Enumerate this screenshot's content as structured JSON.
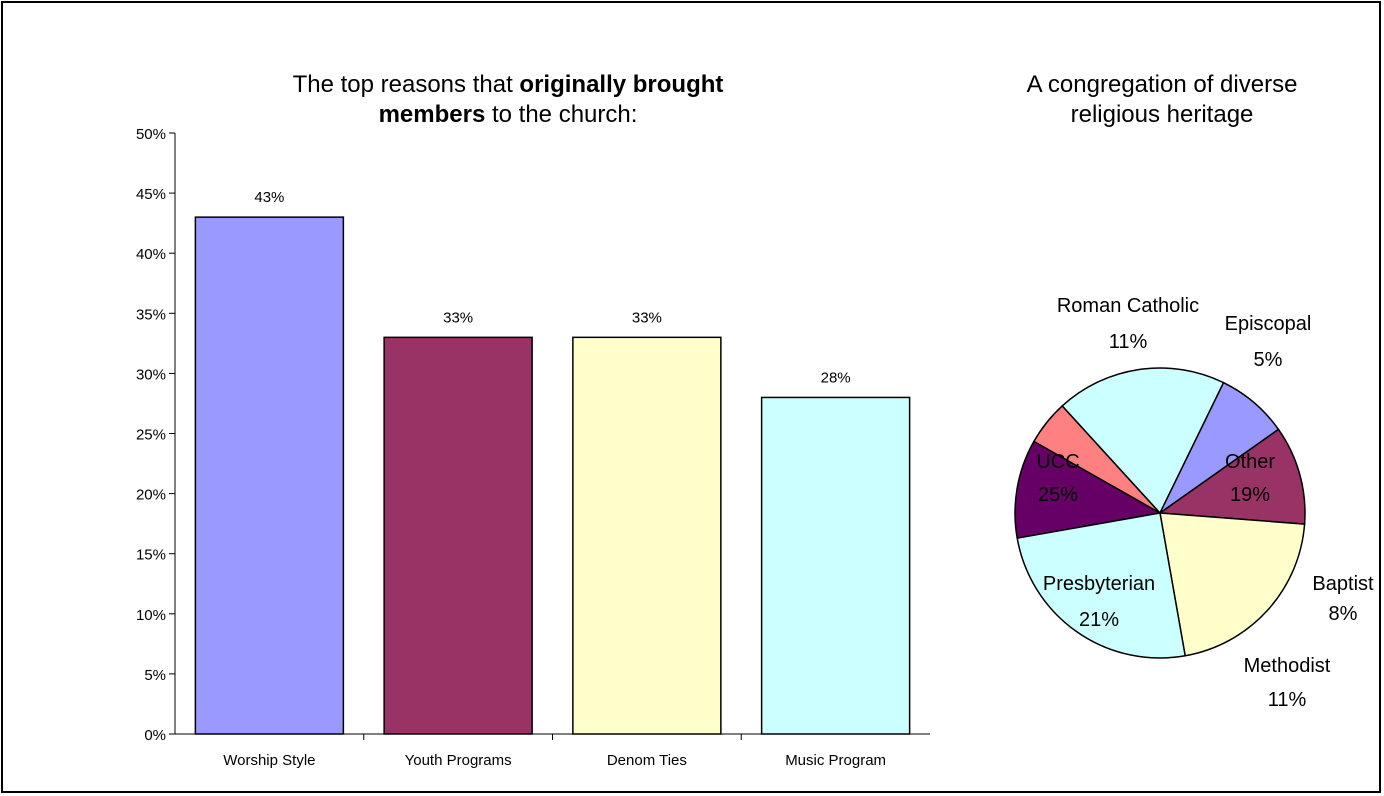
{
  "chart_data": [
    {
      "type": "bar",
      "title_parts": {
        "l1_pre": "The top reasons that ",
        "l1_bold": "originally brought",
        "l2_bold": "members",
        "l2_post": " to the church:"
      },
      "categories": [
        "Worship Style",
        "Youth Programs",
        "Denom Ties",
        "Music Program"
      ],
      "values": [
        43,
        33,
        33,
        28
      ],
      "data_labels": [
        "43%",
        "33%",
        "33%",
        "28%"
      ],
      "ylim": [
        0,
        50
      ],
      "yticks": [
        "0%",
        "5%",
        "10%",
        "15%",
        "20%",
        "25%",
        "30%",
        "35%",
        "40%",
        "45%",
        "50%"
      ],
      "colors": [
        "#9999ff",
        "#993366",
        "#ffffcc",
        "#ccffff"
      ],
      "grid": false,
      "legend": "none"
    },
    {
      "type": "pie",
      "title_lines": [
        "A congregation of diverse",
        "religious heritage"
      ],
      "slices": [
        {
          "name": "Roman Catholic",
          "value": 11,
          "label": "11%",
          "color": "#660066"
        },
        {
          "name": "Episcopal",
          "value": 5,
          "label": "5%",
          "color": "#ff8080"
        },
        {
          "name": "Other",
          "value": 19,
          "label": "19%",
          "color": "#ccffff"
        },
        {
          "name": "Baptist",
          "value": 8,
          "label": "8%",
          "color": "#9999ff"
        },
        {
          "name": "Methodist",
          "value": 11,
          "label": "11%",
          "color": "#993366"
        },
        {
          "name": "Presbyterian",
          "value": 21,
          "label": "21%",
          "color": "#ffffcc"
        },
        {
          "name": "UCC",
          "value": 25,
          "label": "25%",
          "color": "#ccffff"
        }
      ],
      "legend": "none"
    }
  ]
}
